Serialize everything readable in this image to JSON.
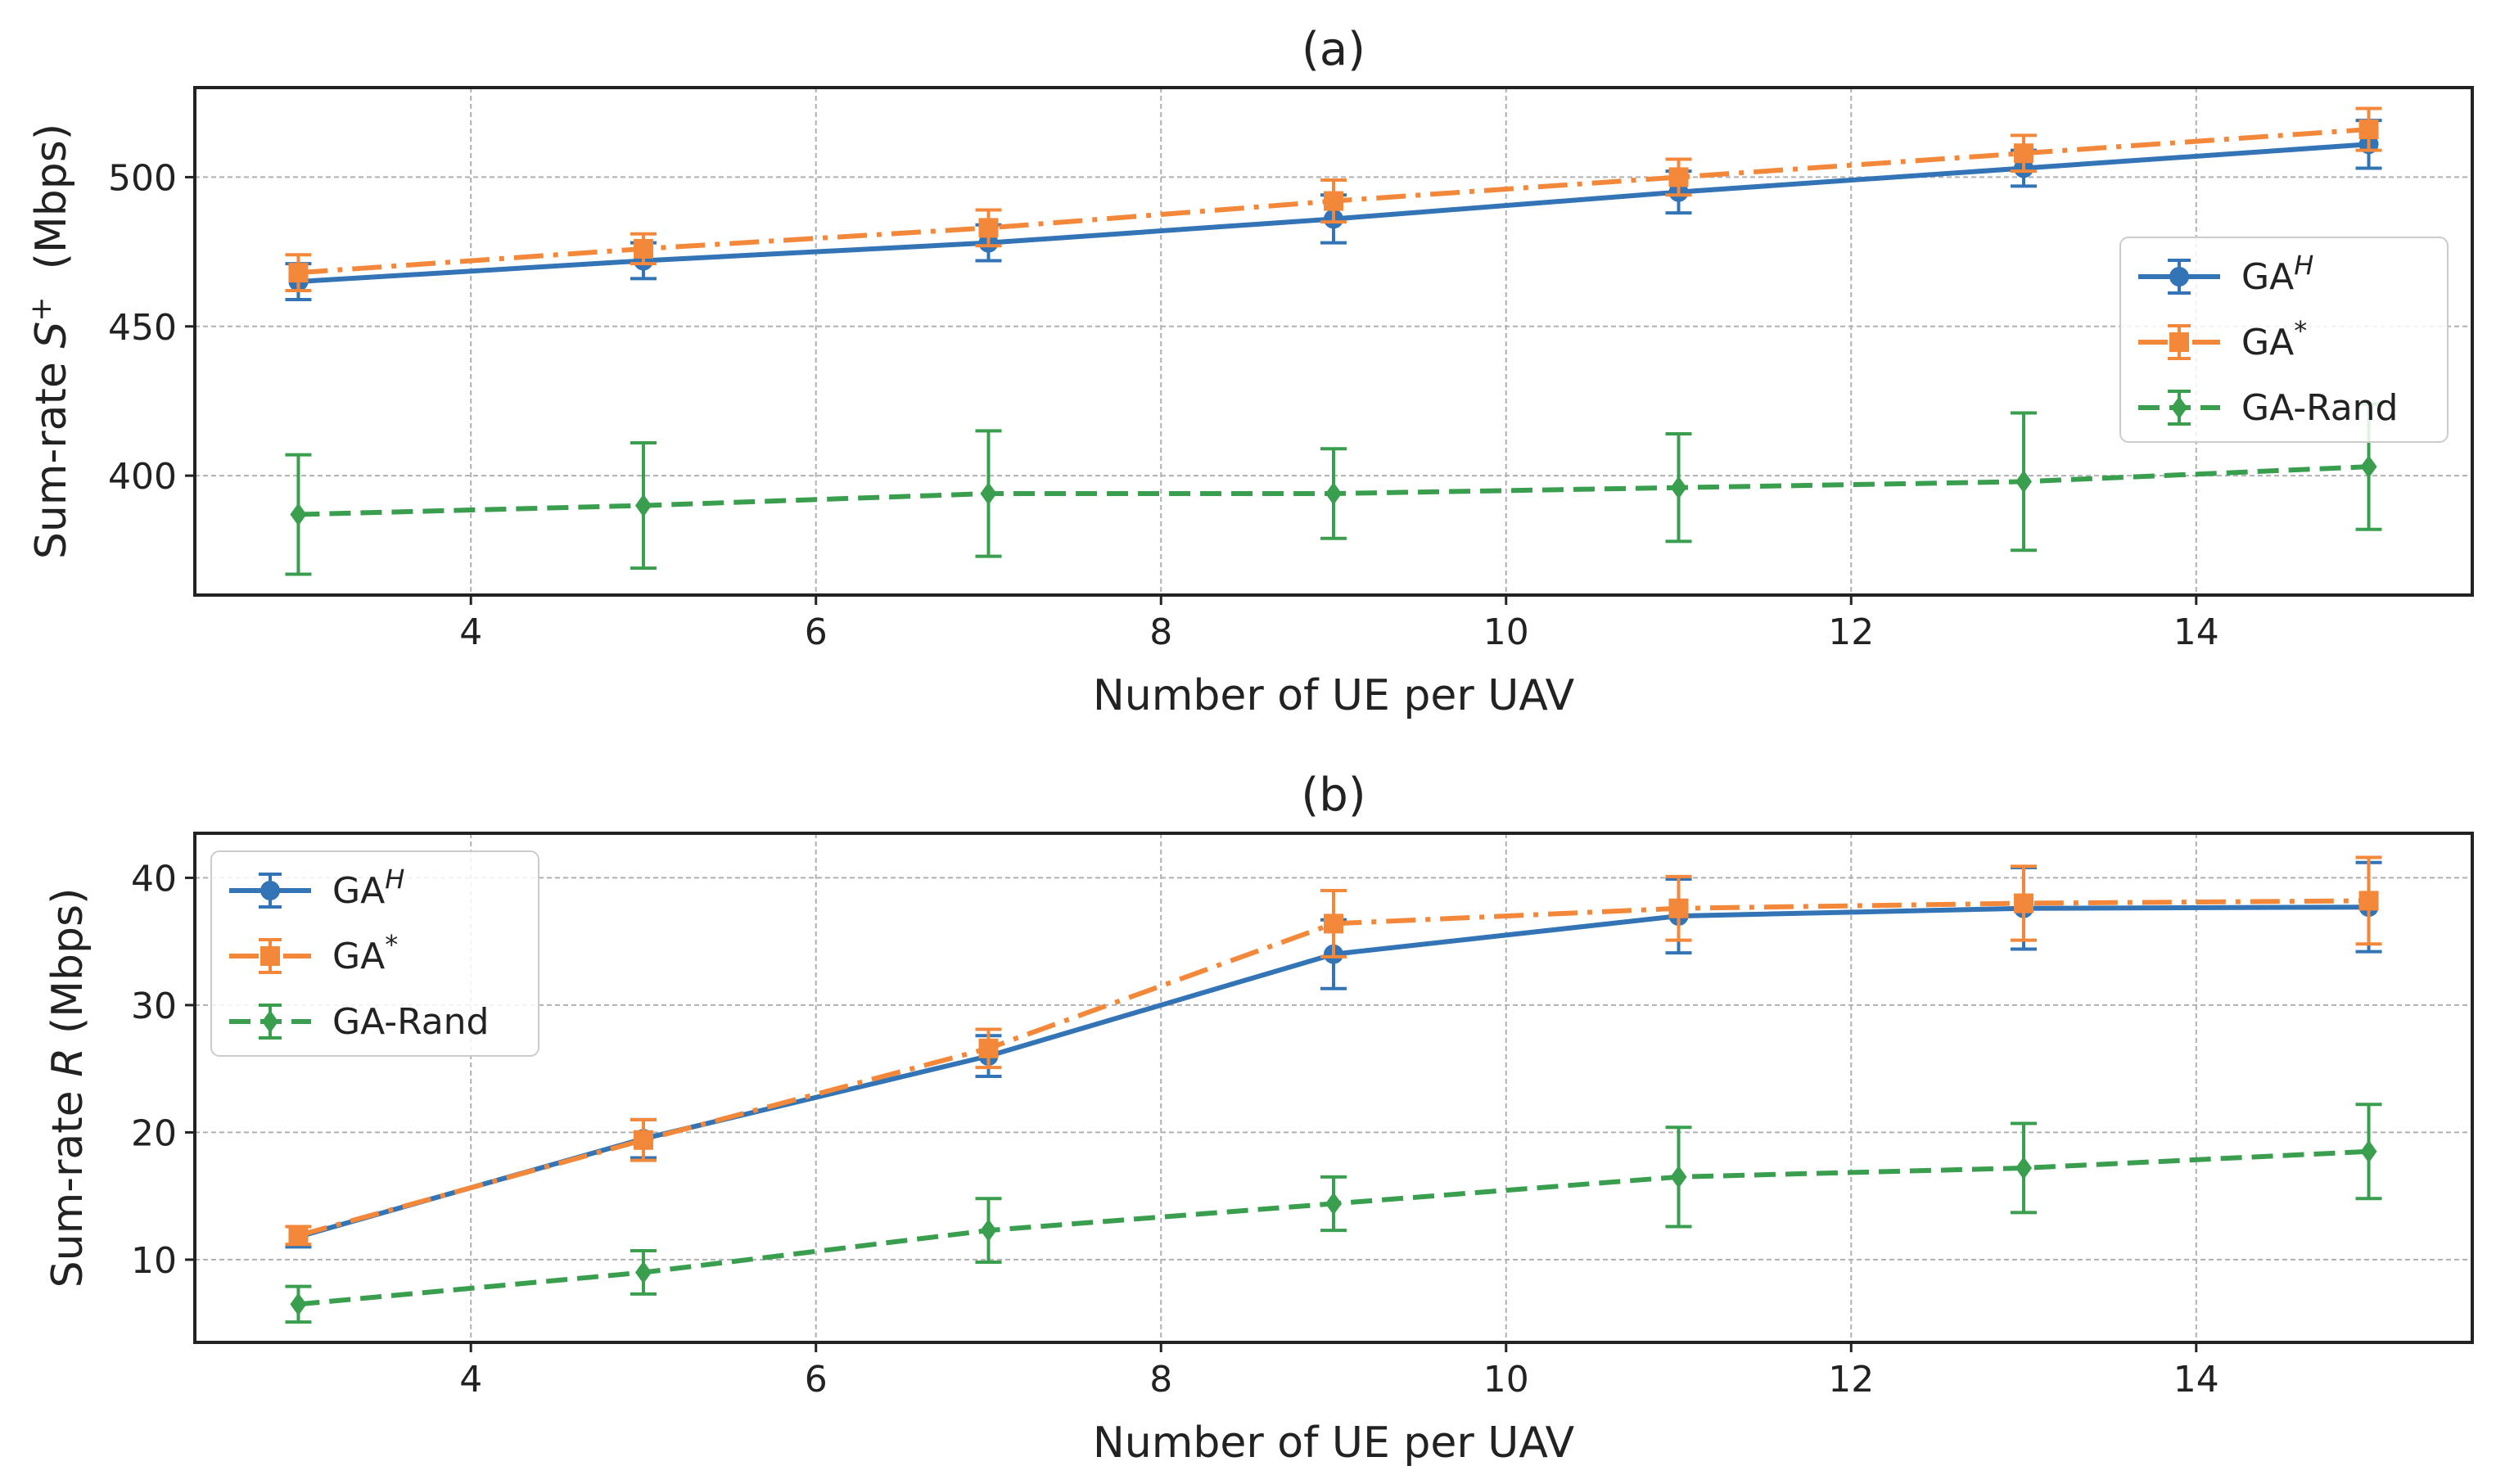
{
  "chart_data": [
    {
      "type": "line",
      "title": "(a)",
      "xlabel": "Number of UE per UAV",
      "ylabel_prefix": "Sum-rate ",
      "ylabel_symbol": "S",
      "ylabel_superscript": "+",
      "ylabel_suffix": "(Mbps)",
      "xlim": [
        2.4,
        15.6
      ],
      "ylim": [
        360,
        530
      ],
      "xticks": [
        4,
        6,
        8,
        10,
        12,
        14
      ],
      "yticks": [
        400,
        450,
        500
      ],
      "grid": true,
      "legend_position": "center-right",
      "x": [
        3,
        5,
        7,
        9,
        11,
        13,
        15
      ],
      "series": [
        {
          "name": "GA",
          "name_sup": "H",
          "color": "#3274b5",
          "linestyle": "solid",
          "marker": "circle",
          "values": [
            465,
            472,
            478,
            486,
            495,
            503,
            511
          ],
          "errors": [
            6,
            6,
            6,
            8,
            7,
            6,
            8
          ]
        },
        {
          "name": "GA",
          "name_sup": "*",
          "color": "#f3883b",
          "linestyle": "dashdot",
          "marker": "square",
          "values": [
            468,
            476,
            483,
            492,
            500,
            508,
            516
          ],
          "errors": [
            6,
            5,
            6,
            7,
            6,
            6,
            7
          ]
        },
        {
          "name": "GA-Rand",
          "name_sup": "",
          "color": "#3a9e4f",
          "linestyle": "dashed",
          "marker": "diamond",
          "values": [
            387,
            390,
            394,
            394,
            396,
            398,
            403
          ],
          "errors": [
            20,
            21,
            21,
            15,
            18,
            23,
            21
          ]
        }
      ]
    },
    {
      "type": "line",
      "title": "(b)",
      "xlabel": "Number of UE per UAV",
      "ylabel_prefix": "Sum-rate ",
      "ylabel_symbol": "R",
      "ylabel_superscript": "",
      "ylabel_suffix": "(Mbps)",
      "xlim": [
        2.4,
        15.6
      ],
      "ylim": [
        3.5,
        43.5
      ],
      "xticks": [
        4,
        6,
        8,
        10,
        12,
        14
      ],
      "yticks": [
        10,
        20,
        30,
        40
      ],
      "grid": true,
      "legend_position": "upper-left",
      "x": [
        3,
        5,
        7,
        9,
        11,
        13,
        15
      ],
      "series": [
        {
          "name": "GA",
          "name_sup": "H",
          "color": "#3274b5",
          "linestyle": "solid",
          "marker": "circle",
          "values": [
            11.8,
            19.5,
            26.0,
            34.0,
            37.0,
            37.6,
            37.7
          ],
          "errors": [
            0.8,
            1.5,
            1.6,
            2.7,
            2.9,
            3.2,
            3.5
          ]
        },
        {
          "name": "GA",
          "name_sup": "*",
          "color": "#f3883b",
          "linestyle": "dashdot",
          "marker": "square",
          "values": [
            11.9,
            19.4,
            26.6,
            36.4,
            37.6,
            38.0,
            38.2
          ],
          "errors": [
            0.7,
            1.6,
            1.5,
            2.6,
            2.5,
            2.9,
            3.4
          ]
        },
        {
          "name": "GA-Rand",
          "name_sup": "",
          "color": "#3a9e4f",
          "linestyle": "dashed",
          "marker": "diamond",
          "values": [
            6.5,
            9.0,
            12.3,
            14.4,
            16.5,
            17.2,
            18.5
          ],
          "errors": [
            1.4,
            1.7,
            2.5,
            2.1,
            3.9,
            3.5,
            3.7
          ]
        }
      ]
    }
  ]
}
